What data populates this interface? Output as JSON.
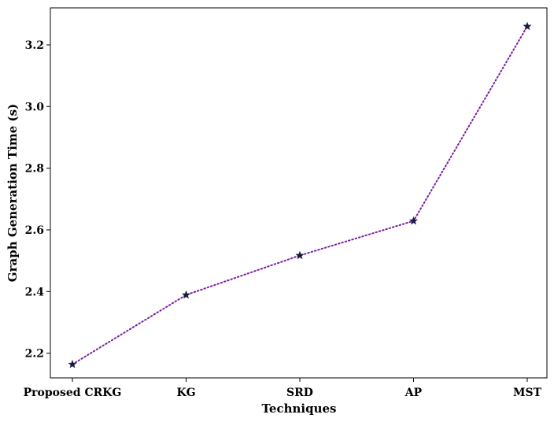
{
  "chart_data": {
    "type": "line",
    "title": "",
    "xlabel": "Techniques",
    "ylabel": "Graph Generation Time (s)",
    "categories": [
      "Proposed CRKG",
      "KG",
      "SRD",
      "AP",
      "MST"
    ],
    "series": [
      {
        "values": [
          2.164,
          2.389,
          2.517,
          2.629,
          3.26
        ],
        "color": "#7b1fa2",
        "marker": "star",
        "marker_color": "#1a1a40",
        "linestyle": "dotted"
      }
    ],
    "ylim": [
      2.12,
      3.32
    ],
    "yticks": [
      "2.2",
      "2.4",
      "2.6",
      "2.8",
      "3.0",
      "3.2"
    ],
    "grid": false,
    "legend": "none"
  }
}
